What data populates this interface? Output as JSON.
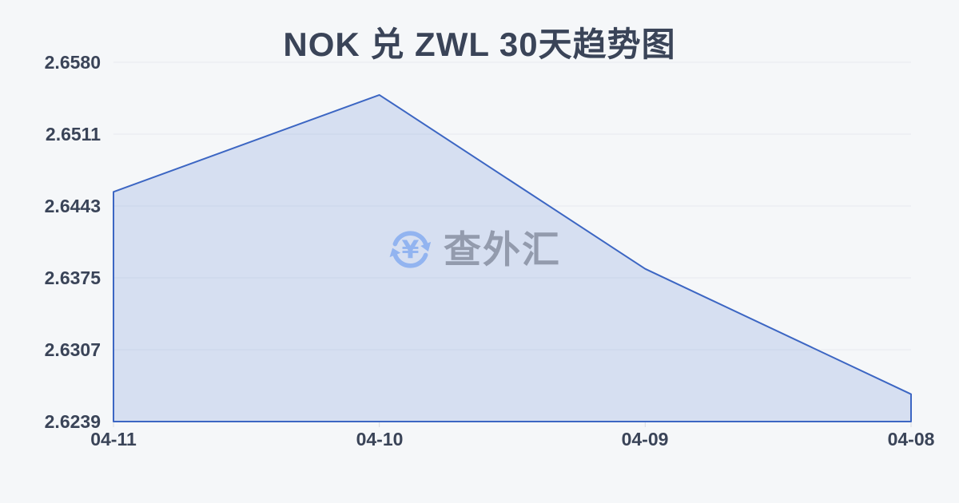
{
  "watermark": {
    "icon": "yuan-refresh-icon",
    "text": "查外汇"
  },
  "colors": {
    "background": "#f5f7f9",
    "text": "#3a4458",
    "line": "#3c66c3",
    "fill": "#d9e1f6",
    "gridline": "#e7eaef",
    "watermark_icon": "#8db1f0",
    "watermark_text": "#8e96a8"
  },
  "chart_data": {
    "type": "area",
    "title": "NOK 兑 ZWL 30天趋势图",
    "categories": [
      "04-11",
      "04-10",
      "04-09",
      "04-08"
    ],
    "values": [
      2.6457,
      2.6549,
      2.6384,
      2.6265
    ],
    "y_tick_labels": [
      "2.6580",
      "2.6511",
      "2.6443",
      "2.6375",
      "2.6307",
      "2.6239"
    ],
    "ylim": [
      2.6239,
      2.658
    ],
    "xlabel": "",
    "ylabel": "",
    "grid": true,
    "legend": "none",
    "line_color": "#3c66c3",
    "fill_color": "rgba(75,115,205,0.18)"
  }
}
